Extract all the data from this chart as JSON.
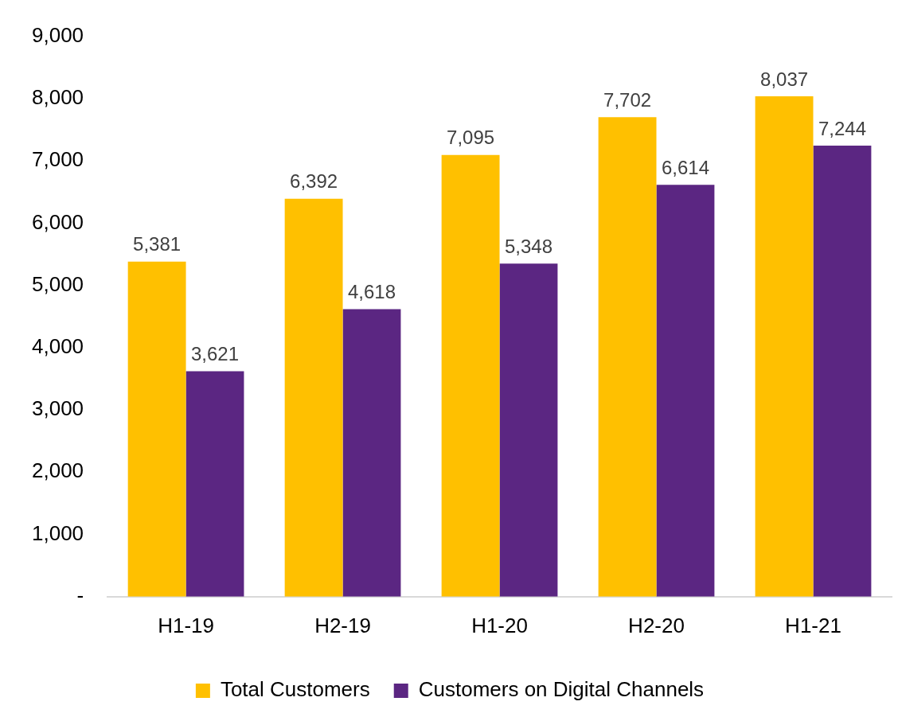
{
  "chart_data": {
    "type": "bar",
    "categories": [
      "H1-19",
      "H2-19",
      "H1-20",
      "H2-20",
      "H1-21"
    ],
    "series": [
      {
        "name": "Total Customers",
        "color": "#ffc000",
        "values": [
          5381,
          6392,
          7095,
          7702,
          8037
        ],
        "value_labels": [
          "5,381",
          "6,392",
          "7,095",
          "7,702",
          "8,037"
        ]
      },
      {
        "name": "Customers on Digital Channels",
        "color": "#5b2682",
        "values": [
          3621,
          4618,
          5348,
          6614,
          7244
        ],
        "value_labels": [
          "3,621",
          "4,618",
          "5,348",
          "6,614",
          "7,244"
        ]
      }
    ],
    "ylim": [
      0,
      9000
    ],
    "yticks": [
      {
        "value": 0,
        "label": "-"
      },
      {
        "value": 1000,
        "label": "1,000"
      },
      {
        "value": 2000,
        "label": "2,000"
      },
      {
        "value": 3000,
        "label": "3,000"
      },
      {
        "value": 4000,
        "label": "4,000"
      },
      {
        "value": 5000,
        "label": "5,000"
      },
      {
        "value": 6000,
        "label": "6,000"
      },
      {
        "value": 7000,
        "label": "7,000"
      },
      {
        "value": 8000,
        "label": "8,000"
      },
      {
        "value": 9000,
        "label": "9,000"
      }
    ],
    "grid": false,
    "legend": "bottom"
  }
}
